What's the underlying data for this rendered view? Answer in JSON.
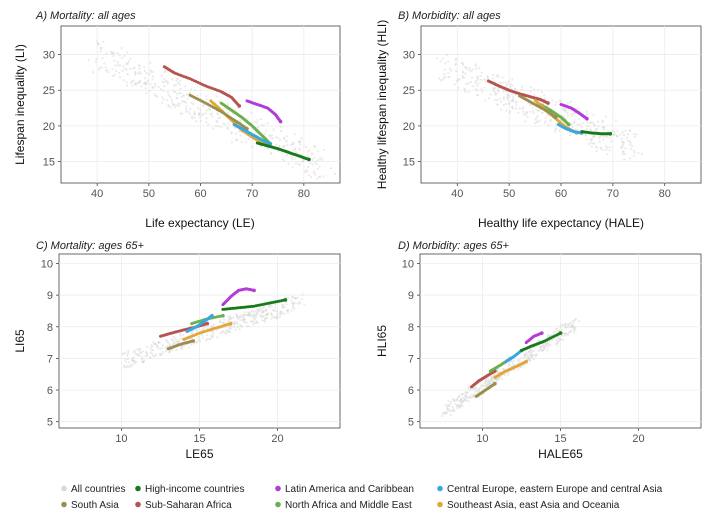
{
  "figure": {
    "colors": {
      "all": "#d9d9d9",
      "high": "#1a7a1a",
      "latam": "#b23cd8",
      "ceeca": "#3aa7e0",
      "sasia": "#9a8f4e",
      "ssa": "#b5554f",
      "nafme": "#6ab04c",
      "seao": "#e3a63a"
    },
    "legend": [
      {
        "key": "all",
        "label": "All countries"
      },
      {
        "key": "high",
        "label": "High-income countries"
      },
      {
        "key": "latam",
        "label": "Latin America and Caribbean"
      },
      {
        "key": "ceeca",
        "label": "Central Europe, eastern Europe and central Asia"
      },
      {
        "key": "sasia",
        "label": "South Asia"
      },
      {
        "key": "ssa",
        "label": "Sub-Saharan Africa"
      },
      {
        "key": "nafme",
        "label": "North Africa and Middle East"
      },
      {
        "key": "seao",
        "label": "Southeast Asia, east Asia and Oceania"
      }
    ]
  },
  "chart_data": [
    {
      "type": "scatter",
      "title": "A) Mortality: all ages",
      "xlabel": "Life expectancy (LE)",
      "ylabel": "Lifespan inequality (LI)",
      "xlim": [
        33,
        87
      ],
      "ylim": [
        12,
        34
      ],
      "xticks": [
        40,
        50,
        60,
        70,
        80
      ],
      "yticks": [
        15,
        20,
        25,
        30
      ],
      "grid": true,
      "background_cloud": {
        "series": "All countries",
        "from": [
          40,
          30
        ],
        "to": [
          84,
          14
        ],
        "spread": 3
      },
      "series": [
        {
          "key": "ssa",
          "name": "Sub-Saharan Africa",
          "points": [
            [
              53,
              28.3
            ],
            [
              55,
              27.4
            ],
            [
              58,
              26.6
            ],
            [
              61,
              25.6
            ],
            [
              64,
              24.8
            ],
            [
              66,
              24.0
            ],
            [
              67.5,
              22.8
            ]
          ]
        },
        {
          "key": "latam",
          "name": "Latin America and Caribbean",
          "points": [
            [
              69,
              23.5
            ],
            [
              71,
              23.0
            ],
            [
              73,
              22.5
            ],
            [
              74.5,
              21.6
            ],
            [
              75.5,
              20.6
            ]
          ]
        },
        {
          "key": "nafme",
          "name": "North Africa and Middle East",
          "points": [
            [
              64,
              23.2
            ],
            [
              66,
              22.2
            ],
            [
              68,
              21.2
            ],
            [
              70,
              20.0
            ],
            [
              72,
              18.6
            ],
            [
              73.5,
              17.5
            ]
          ]
        },
        {
          "key": "seao",
          "name": "Southeast Asia, east Asia and Oceania",
          "points": [
            [
              62,
              23.5
            ],
            [
              64,
              22.2
            ],
            [
              66,
              20.8
            ],
            [
              68,
              19.4
            ],
            [
              70.5,
              18.2
            ],
            [
              73,
              17.2
            ]
          ]
        },
        {
          "key": "sasia",
          "name": "South Asia",
          "points": [
            [
              58,
              24.3
            ],
            [
              61,
              23.2
            ],
            [
              64,
              22.0
            ],
            [
              67,
              20.6
            ],
            [
              69,
              19.6
            ]
          ]
        },
        {
          "key": "ceeca",
          "name": "Central Europe, eastern Europe and central Asia",
          "points": [
            [
              66.5,
              20.2
            ],
            [
              68,
              19.6
            ],
            [
              69.5,
              19.0
            ],
            [
              71,
              18.4
            ],
            [
              72.5,
              17.8
            ],
            [
              73.5,
              17.5
            ]
          ]
        },
        {
          "key": "high",
          "name": "High-income countries",
          "points": [
            [
              71,
              17.6
            ],
            [
              73,
              17.2
            ],
            [
              75,
              16.8
            ],
            [
              77,
              16.3
            ],
            [
              79,
              15.8
            ],
            [
              81,
              15.3
            ]
          ]
        }
      ]
    },
    {
      "type": "scatter",
      "title": "B) Morbidity: all ages",
      "xlabel": "Healthy life expectancy (HALE)",
      "ylabel": "Healthy lifespan inequality (HLI)",
      "xlim": [
        33,
        87
      ],
      "ylim": [
        12,
        34
      ],
      "xticks": [
        40,
        50,
        60,
        70,
        80
      ],
      "yticks": [
        15,
        20,
        25,
        30
      ],
      "grid": true,
      "background_cloud": {
        "series": "All countries",
        "from": [
          38,
          28
        ],
        "to": [
          74,
          17
        ],
        "spread": 3
      },
      "series": [
        {
          "key": "ssa",
          "name": "Sub-Saharan Africa",
          "points": [
            [
              46,
              26.3
            ],
            [
              48,
              25.6
            ],
            [
              50,
              25.0
            ],
            [
              52,
              24.5
            ],
            [
              54,
              24.1
            ],
            [
              56,
              23.7
            ],
            [
              57.5,
              23.2
            ]
          ]
        },
        {
          "key": "latam",
          "name": "Latin America and Caribbean",
          "points": [
            [
              60,
              23.0
            ],
            [
              62,
              22.5
            ],
            [
              63.5,
              21.8
            ],
            [
              65,
              21.0
            ]
          ]
        },
        {
          "key": "nafme",
          "name": "North Africa and Middle East",
          "points": [
            [
              56,
              23.0
            ],
            [
              58,
              22.2
            ],
            [
              60,
              21.2
            ],
            [
              61.5,
              20.2
            ]
          ]
        },
        {
          "key": "seao",
          "name": "Southeast Asia, east Asia and Oceania",
          "points": [
            [
              55,
              23.6
            ],
            [
              57,
              22.3
            ],
            [
              59,
              21.0
            ],
            [
              61,
              19.8
            ],
            [
              63,
              19.0
            ]
          ]
        },
        {
          "key": "sasia",
          "name": "South Asia",
          "points": [
            [
              52,
              24.2
            ],
            [
              54.5,
              23.2
            ],
            [
              57,
              22.2
            ],
            [
              59,
              21.2
            ]
          ]
        },
        {
          "key": "ceeca",
          "name": "Central Europe, eastern Europe and central Asia",
          "points": [
            [
              59.5,
              20.2
            ],
            [
              61,
              19.6
            ],
            [
              62.5,
              19.2
            ],
            [
              64,
              19.0
            ]
          ]
        },
        {
          "key": "high",
          "name": "High-income countries",
          "points": [
            [
              64,
              19.2
            ],
            [
              66,
              19.0
            ],
            [
              68,
              18.9
            ],
            [
              69.5,
              18.9
            ]
          ]
        }
      ]
    },
    {
      "type": "scatter",
      "title": "C) Mortality: ages 65+",
      "xlabel": "LE65",
      "ylabel": "LI65",
      "xlim": [
        6,
        24
      ],
      "ylim": [
        4.8,
        10.3
      ],
      "xticks": [
        10,
        15,
        20
      ],
      "yticks": [
        5,
        6,
        7,
        8,
        9,
        10
      ],
      "grid": true,
      "background_cloud": {
        "series": "All countries",
        "from": [
          10,
          6.9
        ],
        "to": [
          21.5,
          8.8
        ],
        "spread": 0.35
      },
      "series": [
        {
          "key": "ssa",
          "name": "Sub-Saharan Africa",
          "points": [
            [
              12.5,
              7.7
            ],
            [
              13.2,
              7.8
            ],
            [
              14.0,
              7.9
            ],
            [
              14.8,
              8.0
            ],
            [
              15.5,
              8.1
            ]
          ]
        },
        {
          "key": "latam",
          "name": "Latin America and Caribbean",
          "points": [
            [
              16.5,
              8.7
            ],
            [
              17.0,
              8.95
            ],
            [
              17.5,
              9.15
            ],
            [
              18.0,
              9.2
            ],
            [
              18.5,
              9.15
            ]
          ]
        },
        {
          "key": "nafme",
          "name": "North Africa and Middle East",
          "points": [
            [
              14.5,
              8.1
            ],
            [
              15.5,
              8.25
            ],
            [
              16.5,
              8.35
            ]
          ]
        },
        {
          "key": "seao",
          "name": "Southeast Asia, east Asia and Oceania",
          "points": [
            [
              14.0,
              7.6
            ],
            [
              15.0,
              7.8
            ],
            [
              16.0,
              7.95
            ],
            [
              17.0,
              8.1
            ]
          ]
        },
        {
          "key": "sasia",
          "name": "South Asia",
          "points": [
            [
              13.0,
              7.3
            ],
            [
              13.8,
              7.45
            ],
            [
              14.6,
              7.55
            ]
          ]
        },
        {
          "key": "ceeca",
          "name": "Central Europe, eastern Europe and central Asia",
          "points": [
            [
              14.2,
              7.85
            ],
            [
              14.8,
              8.0
            ],
            [
              15.4,
              8.2
            ],
            [
              15.8,
              8.35
            ]
          ]
        },
        {
          "key": "high",
          "name": "High-income countries",
          "points": [
            [
              16.5,
              8.55
            ],
            [
              17.5,
              8.6
            ],
            [
              18.5,
              8.65
            ],
            [
              19.5,
              8.75
            ],
            [
              20.5,
              8.85
            ]
          ]
        }
      ]
    },
    {
      "type": "scatter",
      "title": "D) Morbidity: ages 65+",
      "xlabel": "HALE65",
      "ylabel": "HLI65",
      "xlim": [
        6,
        24
      ],
      "ylim": [
        4.8,
        10.3
      ],
      "xticks": [
        10,
        15,
        20
      ],
      "yticks": [
        5,
        6,
        7,
        8,
        9,
        10
      ],
      "grid": true,
      "background_cloud": {
        "series": "All countries",
        "from": [
          7.5,
          5.3
        ],
        "to": [
          16,
          8.1
        ],
        "spread": 0.3
      },
      "series": [
        {
          "key": "ssa",
          "name": "Sub-Saharan Africa",
          "points": [
            [
              9.3,
              6.1
            ],
            [
              9.8,
              6.3
            ],
            [
              10.3,
              6.45
            ],
            [
              10.8,
              6.6
            ]
          ]
        },
        {
          "key": "latam",
          "name": "Latin America and Caribbean",
          "points": [
            [
              12.8,
              7.5
            ],
            [
              13.3,
              7.7
            ],
            [
              13.8,
              7.8
            ]
          ]
        },
        {
          "key": "nafme",
          "name": "North Africa and Middle East",
          "points": [
            [
              10.5,
              6.6
            ],
            [
              11.2,
              6.8
            ],
            [
              11.8,
              7.0
            ]
          ]
        },
        {
          "key": "seao",
          "name": "Southeast Asia, east Asia and Oceania",
          "points": [
            [
              10.8,
              6.4
            ],
            [
              11.5,
              6.6
            ],
            [
              12.2,
              6.75
            ],
            [
              12.8,
              6.9
            ]
          ]
        },
        {
          "key": "sasia",
          "name": "South Asia",
          "points": [
            [
              9.6,
              5.8
            ],
            [
              10.2,
              6.0
            ],
            [
              10.8,
              6.2
            ]
          ]
        },
        {
          "key": "ceeca",
          "name": "Central Europe, eastern Europe and central Asia",
          "points": [
            [
              11.5,
              6.9
            ],
            [
              12.0,
              7.05
            ],
            [
              12.5,
              7.25
            ]
          ]
        },
        {
          "key": "high",
          "name": "High-income countries",
          "points": [
            [
              12.5,
              7.25
            ],
            [
              13.2,
              7.4
            ],
            [
              14.0,
              7.55
            ],
            [
              15.0,
              7.8
            ]
          ]
        }
      ]
    }
  ]
}
